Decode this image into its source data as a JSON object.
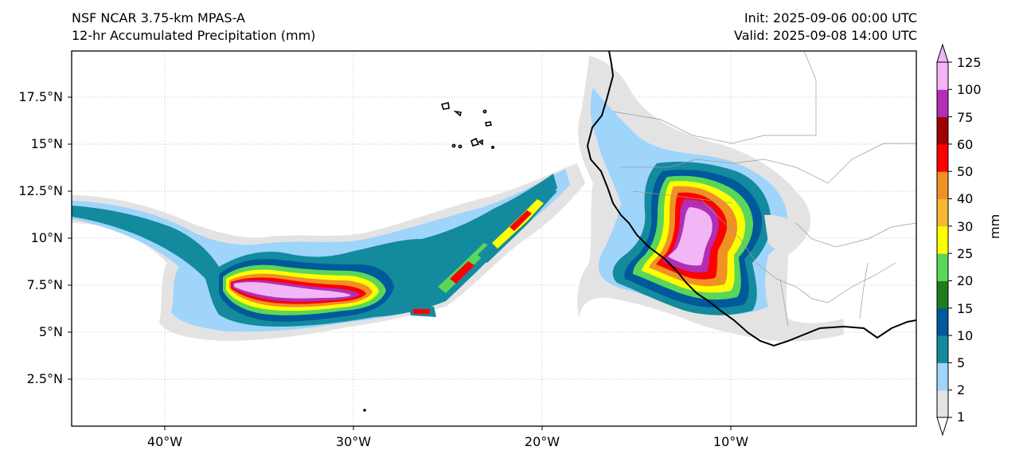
{
  "title_left": {
    "line1": "NSF NCAR 3.75-km MPAS-A",
    "line2": "12-hr Accumulated Precipitation (mm)"
  },
  "title_right": {
    "line1": "Init: 2025-09-06 00:00 UTC",
    "line2": "Valid: 2025-09-08 14:00 UTC"
  },
  "map": {
    "lat_labels": [
      "17.5°N",
      "15°N",
      "12.5°N",
      "10°N",
      "7.5°N",
      "5°N",
      "2.5°N"
    ],
    "lon_labels": [
      "40°W",
      "30°W",
      "20°W",
      "10°W"
    ],
    "colors": {
      "c1": "#e3e3e3",
      "c2": "#9fd4fb",
      "c5": "#138a9e",
      "c10": "#00599a",
      "c15": "#1e7d1e",
      "c20": "#5ad65a",
      "c25": "#ffff00",
      "c30": "#f5b830",
      "c40": "#f09125",
      "c50": "#ff0000",
      "c60": "#a00000",
      "c75": "#b12eb5",
      "c100": "#f2b5f5"
    }
  },
  "colorbar": {
    "unit": "mm",
    "levels": [
      "1",
      "2",
      "5",
      "10",
      "15",
      "20",
      "25",
      "30",
      "40",
      "50",
      "60",
      "75",
      "100",
      "125"
    ],
    "colors": [
      "#e3e3e3",
      "#9fd4fb",
      "#138a9e",
      "#00599a",
      "#1e7d1e",
      "#5ad65a",
      "#ffff00",
      "#f5b830",
      "#f09125",
      "#ff0000",
      "#a00000",
      "#b12eb5",
      "#f2b5f5"
    ]
  }
}
